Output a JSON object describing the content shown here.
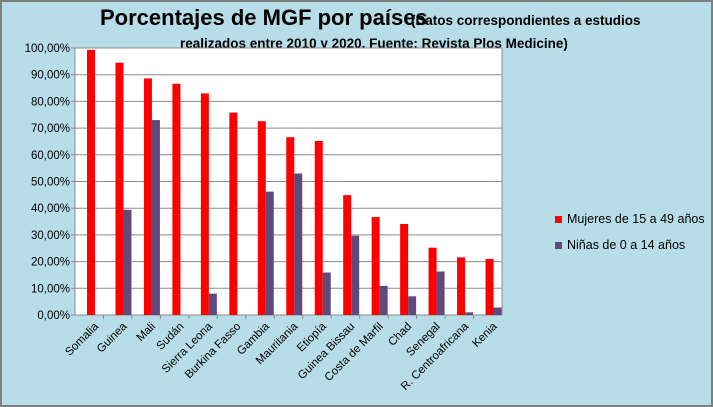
{
  "chart_data": {
    "type": "bar",
    "title": "Porcentajes de MGF por países",
    "subtitle_line1": "(Datos correspondientes a estudios",
    "subtitle_line2": "realizados entre 2010 y 2020.  Fuente: Revista Plos Medicine)",
    "categories": [
      "Somalia",
      "Guinea",
      "Mali",
      "Sudán",
      "Sierra Leona",
      "Burkina Fasso",
      "Gambia",
      "Mauritania",
      "Etiopía",
      "Guinea Bissau",
      "Costa de Marfil",
      "Chad",
      "Senegal",
      "R. Centroafricana",
      "Kenia"
    ],
    "series": [
      {
        "name": "Mujeres de 15 a 49 años",
        "color": "#ff0000",
        "values": [
          99.3,
          94.5,
          88.6,
          86.6,
          83.0,
          75.8,
          72.6,
          66.6,
          65.2,
          44.9,
          36.7,
          34.1,
          25.2,
          21.6,
          21.0
        ]
      },
      {
        "name": "Niñas de 0 a 14 años",
        "color": "#604a7b",
        "values": [
          null,
          39.4,
          73.0,
          null,
          8.0,
          null,
          46.2,
          53.0,
          15.9,
          29.7,
          10.9,
          7.0,
          16.3,
          1.0,
          2.8
        ]
      }
    ],
    "ylim": [
      0,
      100
    ],
    "yticks": [
      "0,00%",
      "10,00%",
      "20,00%",
      "30,00%",
      "40,00%",
      "50,00%",
      "60,00%",
      "70,00%",
      "80,00%",
      "90,00%",
      "100,00%"
    ],
    "grid": true,
    "legend_position": "right"
  }
}
